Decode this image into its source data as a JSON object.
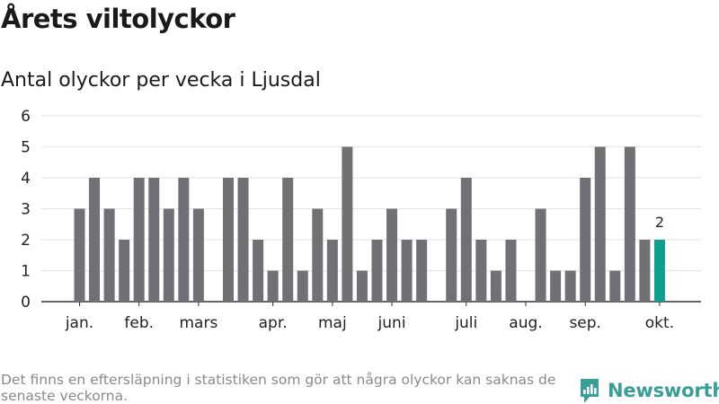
{
  "title": "Årets viltolyckor",
  "subtitle": "Antal olyckor per vecka i Ljusdal",
  "footer": "Det finns en eftersläpning i statistiken som gör att några olyckor kan saknas de senaste veckorna.",
  "brand": {
    "name": "Newsworthy",
    "icon": "newsworthy-logo-icon",
    "color": "#3a9e98"
  },
  "colors": {
    "bar": "#717074",
    "highlight": "#0fa08f",
    "grid": "#e3e3e3",
    "axis": "#333333"
  },
  "chart_data": {
    "type": "bar",
    "title": "Antal olyckor per vecka i Ljusdal",
    "xlabel": "",
    "ylabel": "",
    "ylim": [
      0,
      6
    ],
    "yticks": [
      0,
      1,
      2,
      3,
      4,
      5,
      6
    ],
    "grid": true,
    "values": [
      3,
      4,
      3,
      2,
      4,
      4,
      3,
      4,
      3,
      0,
      4,
      4,
      2,
      1,
      4,
      1,
      3,
      2,
      5,
      1,
      2,
      3,
      2,
      2,
      0,
      3,
      4,
      2,
      1,
      2,
      0,
      3,
      1,
      1,
      4,
      5,
      1,
      5,
      2,
      2
    ],
    "highlight_index": 39,
    "data_labels": [
      {
        "index": 39,
        "text": "2"
      }
    ],
    "month_labels": [
      {
        "label": "jan.",
        "week": 1
      },
      {
        "label": "feb.",
        "week": 5
      },
      {
        "label": "mars",
        "week": 9
      },
      {
        "label": "apr.",
        "week": 14
      },
      {
        "label": "maj",
        "week": 18
      },
      {
        "label": "juni",
        "week": 22
      },
      {
        "label": "juli",
        "week": 27
      },
      {
        "label": "aug.",
        "week": 31
      },
      {
        "label": "sep.",
        "week": 35
      },
      {
        "label": "okt.",
        "week": 40
      }
    ]
  }
}
